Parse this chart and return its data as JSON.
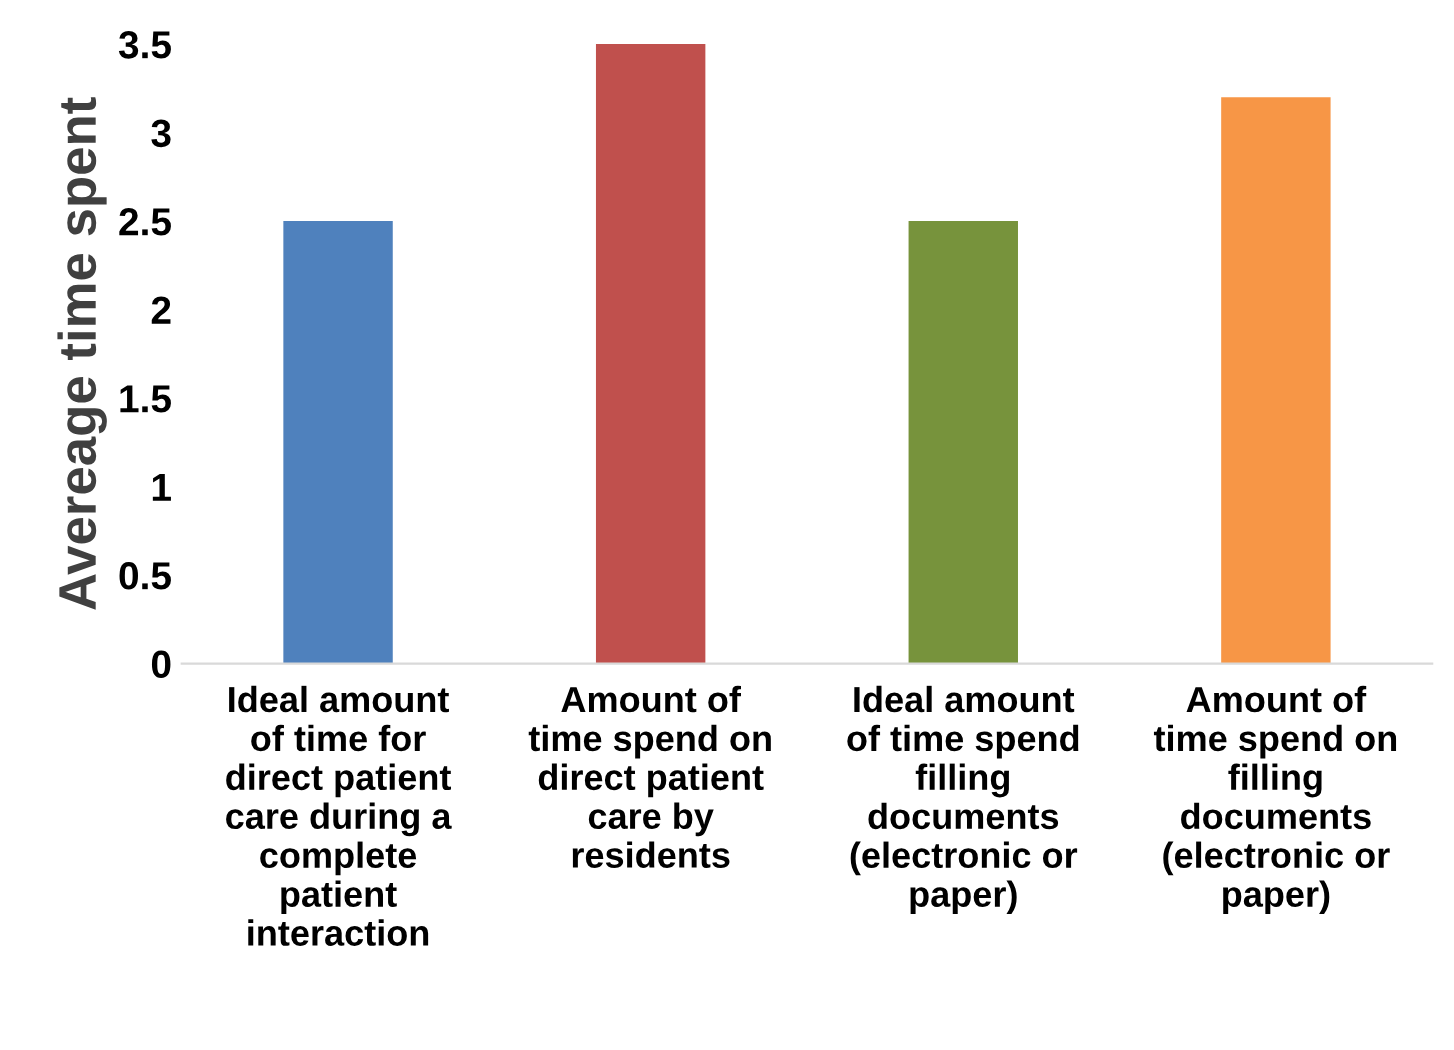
{
  "chart_data": {
    "type": "bar",
    "ylabel": "Avereage time spent",
    "categories": [
      "Ideal amount\nof time for\ndirect patient\ncare during a\ncomplete\npatient\ninteraction",
      "Amount of\ntime spend on\ndirect patient\ncare by\nresidents",
      "Ideal amount\nof time spend\nfilling\ndocuments\n(electronic or\npaper)",
      "Amount of\ntime spend on\nfilling\ndocuments\n(electronic or\npaper)"
    ],
    "values": [
      2.5,
      3.5,
      2.5,
      3.2
    ],
    "colors": [
      "#4f81bd",
      "#c0504d",
      "#77933c",
      "#f79646"
    ],
    "ylim": [
      0,
      3.5
    ],
    "yticks": [
      0,
      0.5,
      1,
      1.5,
      2,
      2.5,
      3,
      3.5
    ],
    "grid": false,
    "legend": false
  }
}
